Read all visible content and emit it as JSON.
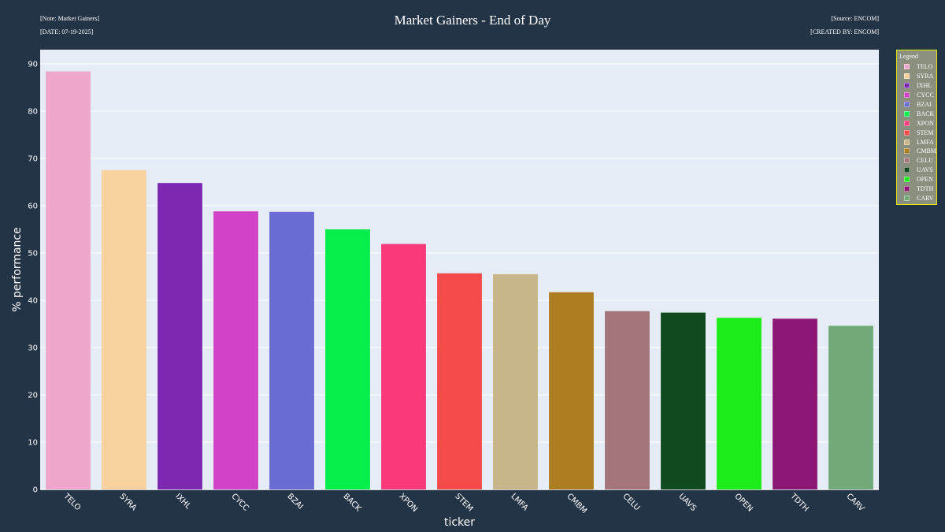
{
  "header": {
    "title": "Market Gainers - End of Day",
    "note_top_left": "[Note: Market Gainers]",
    "note_bottom_left": "[DATE: 07-19-2025]",
    "note_top_right": "[Source: ENCOM]",
    "note_bottom_right": "[CREATED BY: ENCOM]"
  },
  "legend": {
    "title": "Legend",
    "placement": "top-right, outside plot"
  },
  "colors": {
    "page_background": "#243447",
    "plot_background": "#e5ecf6",
    "gridline": "#ffffff",
    "legend_border": "#e8e800",
    "legend_background": "#8a8f7e"
  },
  "chart_data": {
    "type": "bar",
    "title": "Market Gainers - End of Day",
    "xlabel": "ticker",
    "ylabel": "% performance",
    "ylim": [
      0,
      93
    ],
    "yticks": [
      0,
      10,
      20,
      30,
      40,
      50,
      60,
      70,
      80,
      90
    ],
    "grid": true,
    "legend_placement": "top-right",
    "categories": [
      "TELO",
      "SYRA",
      "IXHL",
      "CYCC",
      "BZAI",
      "BACK",
      "XPON",
      "STEM",
      "LMFA",
      "CMBM",
      "CELU",
      "UAVS",
      "OPEN",
      "TDTH",
      "CARV"
    ],
    "values": [
      88.4,
      67.5,
      64.8,
      58.8,
      58.7,
      55.0,
      51.9,
      45.7,
      45.5,
      41.7,
      37.7,
      37.4,
      36.3,
      36.1,
      34.6
    ],
    "bar_colors": [
      "#eea6cb",
      "#f9d19e",
      "#7c28b1",
      "#d143c6",
      "#6a6bd3",
      "#05ee4b",
      "#f9397a",
      "#f54a4a",
      "#c8b589",
      "#ad7d22",
      "#a5757c",
      "#114a1f",
      "#1ced1a",
      "#8c1774",
      "#71aa78"
    ]
  }
}
